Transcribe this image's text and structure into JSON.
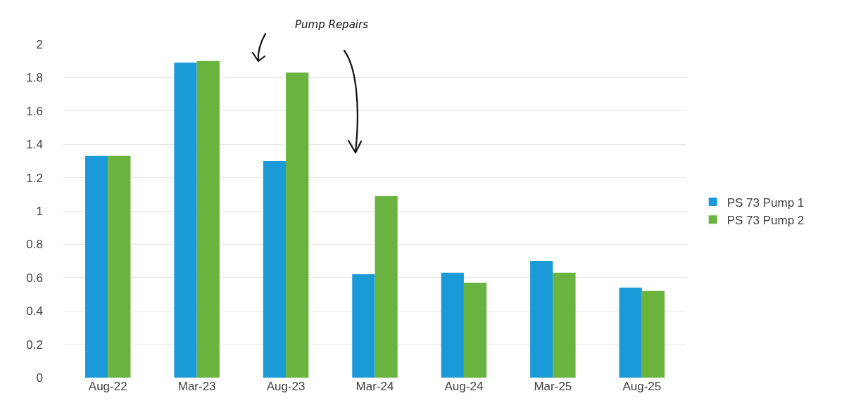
{
  "chart_data": {
    "type": "bar",
    "categories": [
      "Aug-22",
      "Mar-23",
      "Aug-23",
      "Mar-24",
      "Aug-24",
      "Mar-25",
      "Aug-25"
    ],
    "series": [
      {
        "name": "PS 73 Pump 1",
        "color": "#1a9ad6",
        "values": [
          1.33,
          1.89,
          1.3,
          0.62,
          0.63,
          0.7,
          0.54
        ]
      },
      {
        "name": "PS 73 Pump 2",
        "color": "#6ab33e",
        "values": [
          1.33,
          1.9,
          1.83,
          1.09,
          0.57,
          0.63,
          0.52
        ]
      }
    ],
    "ylim": [
      0,
      2
    ],
    "yticks": [
      0,
      0.2,
      0.4,
      0.6,
      0.8,
      1,
      1.2,
      1.4,
      1.6,
      1.8,
      2
    ],
    "grid": "y",
    "legend": "right",
    "annotations": [
      "Pump Repairs"
    ]
  }
}
